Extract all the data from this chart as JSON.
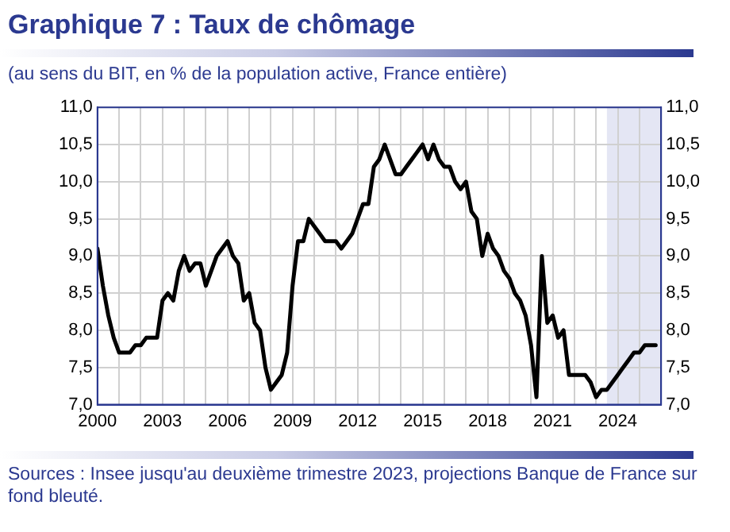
{
  "chart_data": {
    "type": "line",
    "title": "Graphique 7 : Taux de chômage",
    "subtitle": "(au sens du BIT, en % de la population active, France entière)",
    "annotations": [
      "Sources : Insee jusqu'au deuxième trimestre 2023, projections Banque de France sur fond bleuté."
    ],
    "x": [
      2000,
      2000.25,
      2000.5,
      2000.75,
      2001,
      2001.25,
      2001.5,
      2001.75,
      2002,
      2002.25,
      2002.5,
      2002.75,
      2003,
      2003.25,
      2003.5,
      2003.75,
      2004,
      2004.25,
      2004.5,
      2004.75,
      2005,
      2005.25,
      2005.5,
      2005.75,
      2006,
      2006.25,
      2006.5,
      2006.75,
      2007,
      2007.25,
      2007.5,
      2007.75,
      2008,
      2008.25,
      2008.5,
      2008.75,
      2009,
      2009.25,
      2009.5,
      2009.75,
      2010,
      2010.25,
      2010.5,
      2010.75,
      2011,
      2011.25,
      2011.5,
      2011.75,
      2012,
      2012.25,
      2012.5,
      2012.75,
      2013,
      2013.25,
      2013.5,
      2013.75,
      2014,
      2014.25,
      2014.5,
      2014.75,
      2015,
      2015.25,
      2015.5,
      2015.75,
      2016,
      2016.25,
      2016.5,
      2016.75,
      2017,
      2017.25,
      2017.5,
      2017.75,
      2018,
      2018.25,
      2018.5,
      2018.75,
      2019,
      2019.25,
      2019.5,
      2019.75,
      2020,
      2020.25,
      2020.5,
      2020.75,
      2021,
      2021.25,
      2021.5,
      2021.75,
      2022,
      2022.25,
      2022.5,
      2022.75,
      2023,
      2023.25,
      2023.5,
      2023.75,
      2024,
      2024.25,
      2024.5,
      2024.75,
      2025,
      2025.25,
      2025.5,
      2025.75
    ],
    "series": [
      {
        "color": "#000000",
        "values": [
          9.1,
          8.6,
          8.2,
          7.9,
          7.7,
          7.7,
          7.7,
          7.8,
          7.8,
          7.9,
          7.9,
          7.9,
          8.4,
          8.5,
          8.4,
          8.8,
          9.0,
          8.8,
          8.9,
          8.9,
          8.6,
          8.8,
          9.0,
          9.1,
          9.2,
          9.0,
          8.9,
          8.4,
          8.5,
          8.1,
          8.0,
          7.5,
          7.2,
          7.3,
          7.4,
          7.7,
          8.6,
          9.2,
          9.2,
          9.5,
          9.4,
          9.3,
          9.2,
          9.2,
          9.2,
          9.1,
          9.2,
          9.3,
          9.5,
          9.7,
          9.7,
          10.2,
          10.3,
          10.5,
          10.3,
          10.1,
          10.1,
          10.2,
          10.3,
          10.4,
          10.5,
          10.3,
          10.5,
          10.3,
          10.2,
          10.2,
          10.0,
          9.9,
          10.0,
          9.6,
          9.5,
          9.0,
          9.3,
          9.1,
          9.0,
          8.8,
          8.7,
          8.5,
          8.4,
          8.2,
          7.8,
          7.1,
          9.0,
          8.1,
          8.2,
          7.9,
          8.0,
          7.4,
          7.4,
          7.4,
          7.4,
          7.3,
          7.1,
          7.2,
          7.2,
          7.3,
          7.4,
          7.5,
          7.6,
          7.7,
          7.7,
          7.8,
          7.8,
          7.8
        ]
      }
    ],
    "xlim": [
      2000,
      2026
    ],
    "xticks": [
      2000,
      {
        "value": 2001,
        "label": null
      },
      {
        "value": 2002,
        "label": null
      },
      2003,
      {
        "value": 2004,
        "label": null
      },
      {
        "value": 2005,
        "label": null
      },
      2006,
      {
        "value": 2007,
        "label": null
      },
      {
        "value": 2008,
        "label": null
      },
      2009,
      {
        "value": 2010,
        "label": null
      },
      {
        "value": 2011,
        "label": null
      },
      2012,
      {
        "value": 2013,
        "label": null
      },
      {
        "value": 2014,
        "label": null
      },
      2015,
      {
        "value": 2016,
        "label": null
      },
      {
        "value": 2017,
        "label": null
      },
      2018,
      {
        "value": 2019,
        "label": null
      },
      {
        "value": 2020,
        "label": null
      },
      2021,
      {
        "value": 2022,
        "label": null
      },
      {
        "value": 2023,
        "label": null
      },
      2024,
      {
        "value": 2025,
        "label": null
      },
      {
        "value": 2026,
        "label": null
      }
    ],
    "ylim": [
      7,
      11
    ],
    "yticks": [
      {
        "value": 7,
        "label": "7,0"
      },
      {
        "value": 7.5,
        "label": "7,5"
      },
      {
        "value": 8,
        "label": "8,0"
      },
      {
        "value": 8.5,
        "label": "8,5"
      },
      {
        "value": 9,
        "label": "9,0"
      },
      {
        "value": 9.5,
        "label": "9,5"
      },
      {
        "value": 10,
        "label": "10,0"
      },
      {
        "value": 10.5,
        "label": "10,5"
      },
      {
        "value": 11,
        "label": "11,0"
      }
    ],
    "y2lim": [
      7,
      11
    ],
    "y2ticks": [
      {
        "value": 7,
        "label": "7,0"
      },
      {
        "value": 7.5,
        "label": "7,5"
      },
      {
        "value": 8,
        "label": "8,0"
      },
      {
        "value": 8.5,
        "label": "8,5"
      },
      {
        "value": 9,
        "label": "9,0"
      },
      {
        "value": 9.5,
        "label": "9,5"
      },
      {
        "value": 10,
        "label": "10,0"
      },
      {
        "value": 10.5,
        "label": "10,5"
      },
      {
        "value": 11,
        "label": "11,0"
      }
    ],
    "bands": [
      {
        "axis": "x",
        "from": 2023.5,
        "to": 2026,
        "label": null,
        "color": "#e4e6f4"
      }
    ],
    "grid": true,
    "legend": false,
    "marker": "none",
    "line_style": "solid"
  }
}
